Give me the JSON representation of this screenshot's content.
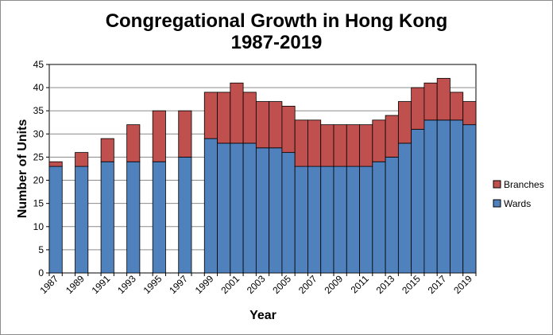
{
  "chart_data": {
    "type": "bar",
    "stacked": true,
    "title_line1": "Congregational Growth in Hong Kong",
    "title_line2": "1987-2019",
    "xlabel": "Year",
    "ylabel": "Number of Units",
    "ylim": [
      0,
      45
    ],
    "yticks": [
      "0",
      "5",
      "10",
      "15",
      "20",
      "25",
      "30",
      "35",
      "40",
      "45"
    ],
    "grid": true,
    "legend_position": "right",
    "x": [
      "1987",
      "1988",
      "1989",
      "1990",
      "1991",
      "1992",
      "1993",
      "1994",
      "1995",
      "1996",
      "1997",
      "1998",
      "1999",
      "2000",
      "2001",
      "2002",
      "2003",
      "2004",
      "2005",
      "2006",
      "2007",
      "2008",
      "2009",
      "2010",
      "2011",
      "2012",
      "2013",
      "2014",
      "2015",
      "2016",
      "2017",
      "2018",
      "2019"
    ],
    "xtick_labels": [
      "1987",
      "1989",
      "1991",
      "1993",
      "1995",
      "1997",
      "1999",
      "2001",
      "2003",
      "2005",
      "2007",
      "2009",
      "2011",
      "2013",
      "2015",
      "2017",
      "2019"
    ],
    "series": [
      {
        "name": "Wards",
        "color": "#4f81bd",
        "values": [
          23,
          null,
          23,
          null,
          24,
          null,
          24,
          null,
          24,
          null,
          25,
          null,
          29,
          28,
          28,
          28,
          27,
          27,
          26,
          23,
          23,
          23,
          23,
          23,
          23,
          24,
          25,
          28,
          31,
          33,
          33,
          33,
          32
        ]
      },
      {
        "name": "Branches",
        "color": "#c0504d",
        "values": [
          1,
          null,
          3,
          null,
          5,
          null,
          8,
          null,
          11,
          null,
          10,
          null,
          10,
          11,
          13,
          11,
          10,
          10,
          10,
          10,
          10,
          9,
          9,
          9,
          9,
          9,
          9,
          9,
          9,
          8,
          9,
          6,
          5
        ]
      }
    ],
    "legend": [
      "Branches",
      "Wards"
    ]
  }
}
